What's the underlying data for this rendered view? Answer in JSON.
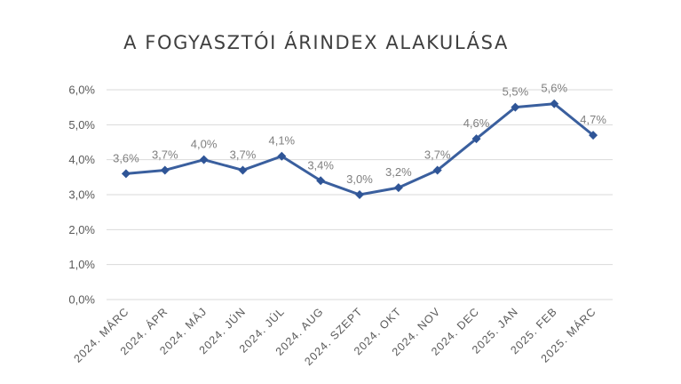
{
  "chart_data": {
    "type": "line",
    "title": "A FOGYASZTÓI ÁRINDEX ALAKULÁSA",
    "xlabel": "",
    "ylabel": "",
    "categories": [
      "2024. MÁRC",
      "2024. ÁPR",
      "2024. MÁJ",
      "2024. JÚN",
      "2024. JÚL",
      "2024. AUG",
      "2024. SZEPT",
      "2024. OKT",
      "2024. NOV",
      "2024. DEC",
      "2025. JAN",
      "2025. FEB",
      "2025. MÁRC"
    ],
    "series": [
      {
        "values": [
          3.6,
          3.7,
          4.0,
          3.7,
          4.1,
          3.4,
          3.0,
          3.2,
          3.7,
          4.6,
          5.5,
          5.6,
          4.7
        ],
        "data_labels": [
          "3,6%",
          "3,7%",
          "4,0%",
          "3,7%",
          "4,1%",
          "3,4%",
          "3,0%",
          "3,2%",
          "3,7%",
          "4,6%",
          "5,5%",
          "5,6%",
          "4,7%"
        ],
        "color": "#2f5597"
      }
    ],
    "ylim": [
      0,
      6
    ],
    "y_ticks": [
      0,
      1,
      2,
      3,
      4,
      5,
      6
    ],
    "y_tick_labels": [
      "0,0%",
      "1,0%",
      "2,0%",
      "3,0%",
      "4,0%",
      "5,0%",
      "6,0%"
    ],
    "grid": true,
    "legend": "none"
  }
}
